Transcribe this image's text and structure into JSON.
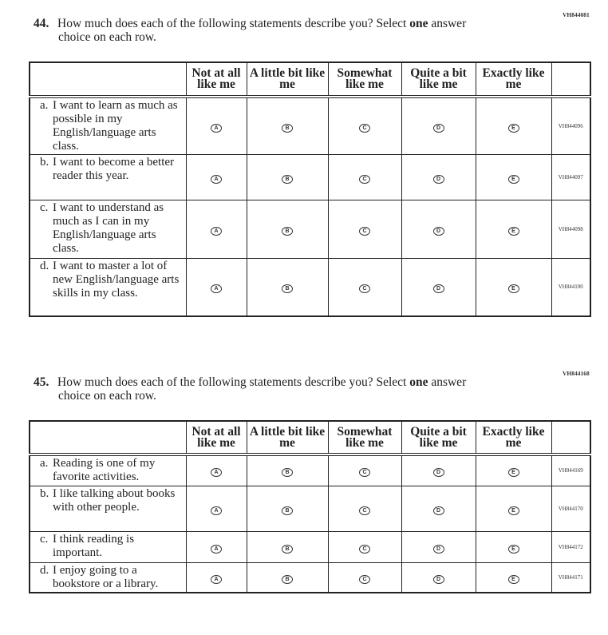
{
  "columns": [
    "Not at all like me",
    "A little bit like me",
    "Somewhat like me",
    "Quite a bit like me",
    "Exactly like me"
  ],
  "bubbles": [
    "A",
    "B",
    "C",
    "D",
    "E"
  ],
  "questions": [
    {
      "code": "VH844081",
      "number": "44.",
      "text_before": "How much does each of the following statements describe you? Select ",
      "text_bold": "one",
      "text_after": " answer",
      "text_line2": "choice on each row.",
      "rows": [
        {
          "letter": "a.",
          "text": "I want to learn as much as possible in my English/language arts class.",
          "id": "VH844096"
        },
        {
          "letter": "b.",
          "text": "I want to become a better reader this year.",
          "id": "VH844097"
        },
        {
          "letter": "c.",
          "text": "I want to understand as much as I can in my English/language arts class.",
          "id": "VH844098"
        },
        {
          "letter": "d.",
          "text": "I want to master a lot of new English/language arts skills in my class.",
          "id": "VH844100"
        }
      ]
    },
    {
      "code": "VH844168",
      "number": "45.",
      "text_before": "How much does each of the following statements describe you? Select ",
      "text_bold": "one",
      "text_after": " answer",
      "text_line2": "choice on each row.",
      "rows": [
        {
          "letter": "a.",
          "text": "Reading is one of my favorite activities.",
          "id": "VH844169"
        },
        {
          "letter": "b.",
          "text": "I like talking about books with other people.",
          "id": "VH844170"
        },
        {
          "letter": "c.",
          "text": "I think reading is important.",
          "id": "VH844172"
        },
        {
          "letter": "d.",
          "text": "I enjoy going to a bookstore or a library.",
          "id": "VH844171"
        }
      ]
    }
  ]
}
